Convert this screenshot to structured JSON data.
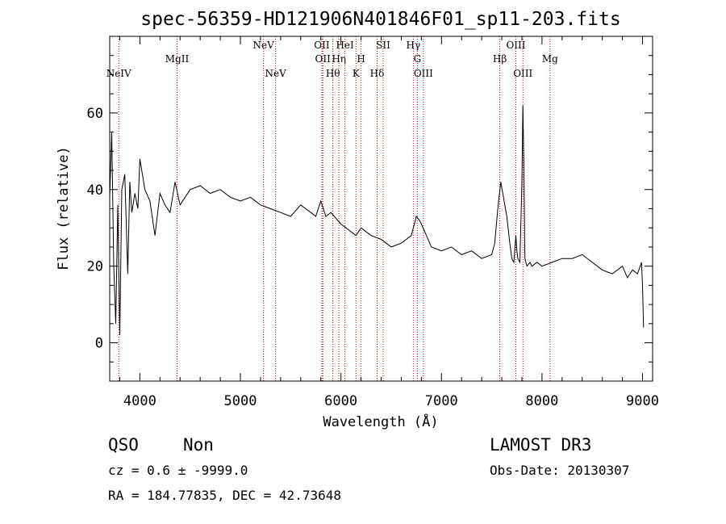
{
  "chart_data": {
    "type": "line",
    "title": "spec-56359-HD121906N401846F01_sp11-203.fits",
    "xlabel": "Wavelength (Å)",
    "ylabel": "Flux (relative)",
    "xlim": [
      3700,
      9100
    ],
    "ylim": [
      -10,
      80
    ],
    "xticks": [
      4000,
      5000,
      6000,
      7000,
      8000,
      9000
    ],
    "yticks": [
      0,
      20,
      40,
      60
    ],
    "grid": false,
    "series": [
      {
        "color": "#000000",
        "x": [
          3700,
          3720,
          3740,
          3760,
          3780,
          3800,
          3820,
          3850,
          3880,
          3900,
          3920,
          3950,
          3980,
          4000,
          4050,
          4100,
          4150,
          4200,
          4250,
          4300,
          4350,
          4400,
          4450,
          4500,
          4600,
          4700,
          4800,
          4900,
          5000,
          5100,
          5200,
          5300,
          5400,
          5500,
          5600,
          5700,
          5750,
          5800,
          5850,
          5900,
          6000,
          6050,
          6100,
          6150,
          6200,
          6300,
          6400,
          6500,
          6600,
          6700,
          6750,
          6780,
          6800,
          6850,
          6900,
          7000,
          7100,
          7200,
          7300,
          7400,
          7500,
          7530,
          7560,
          7590,
          7610,
          7630,
          7650,
          7680,
          7700,
          7720,
          7740,
          7750,
          7760,
          7780,
          7800,
          7810,
          7820,
          7830,
          7850,
          7880,
          7900,
          7950,
          8000,
          8100,
          8200,
          8300,
          8400,
          8500,
          8600,
          8700,
          8800,
          8850,
          8900,
          8950,
          8990,
          9000,
          9010
        ],
        "y": [
          38,
          55,
          20,
          5,
          36,
          2,
          40,
          44,
          18,
          42,
          34,
          39,
          35,
          48,
          40,
          37,
          28,
          39,
          36,
          34,
          42,
          36,
          38,
          40,
          41,
          39,
          40,
          38,
          37,
          38,
          36,
          35,
          34,
          33,
          36,
          34,
          33,
          37,
          33,
          34,
          31,
          30,
          29,
          28,
          30,
          28,
          27,
          25,
          26,
          28,
          33,
          32,
          31,
          28,
          25,
          24,
          25,
          23,
          24,
          22,
          23,
          26,
          35,
          42,
          39,
          36,
          33,
          26,
          22,
          21,
          28,
          24,
          22,
          21,
          42,
          62,
          45,
          22,
          20,
          21,
          20,
          21,
          20,
          21,
          22,
          22,
          23,
          21,
          19,
          18,
          20,
          17,
          19,
          18,
          21,
          15,
          4
        ]
      }
    ],
    "lines": [
      {
        "label": "NeIV",
        "x": 3790,
        "row": 2
      },
      {
        "label": "MgII",
        "x": 4370,
        "row": 1
      },
      {
        "label": "NeV",
        "x": 5230,
        "row": 0
      },
      {
        "label": "NeV",
        "x": 5350,
        "row": 2
      },
      {
        "label": "OII",
        "x": 5810,
        "row": 0
      },
      {
        "label": "OII",
        "x": 5820,
        "row": 1
      },
      {
        "label": "Hθ",
        "x": 5920,
        "row": 2
      },
      {
        "label": "Hη",
        "x": 5980,
        "row": 1
      },
      {
        "label": "HeI",
        "x": 6040,
        "row": 0
      },
      {
        "label": "K",
        "x": 6150,
        "row": 2
      },
      {
        "label": "H",
        "x": 6200,
        "row": 1
      },
      {
        "label": "Hδ",
        "x": 6360,
        "row": 2
      },
      {
        "label": "SII",
        "x": 6420,
        "row": 0
      },
      {
        "label": "Hγ",
        "x": 6720,
        "row": 0
      },
      {
        "label": "G",
        "x": 6760,
        "row": 1
      },
      {
        "label": "OIII",
        "x": 6820,
        "row": 2
      },
      {
        "label": "Hβ",
        "x": 7580,
        "row": 1
      },
      {
        "label": "OIII",
        "x": 7740,
        "row": 0
      },
      {
        "label": "OIII",
        "x": 7810,
        "row": 2
      },
      {
        "label": "Mg",
        "x": 8080,
        "row": 1
      }
    ]
  },
  "info": {
    "class": "QSO",
    "subclass": "Non",
    "survey": "LAMOST DR3",
    "cz": "cz = 0.6 ± -9999.0",
    "obs_date": "Obs-Date: 20130307",
    "coords": "RA = 184.77835, DEC =  42.73648"
  }
}
